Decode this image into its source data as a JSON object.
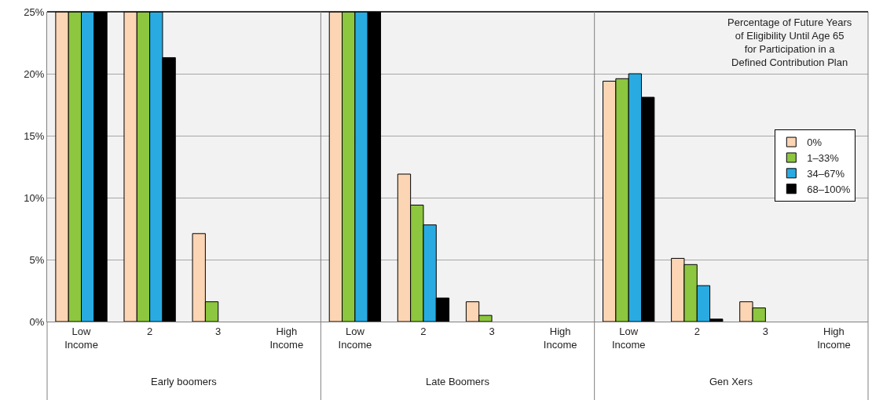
{
  "chart_data": {
    "type": "bar",
    "categories": [
      "Low Income",
      "2",
      "3",
      "High Income",
      "Low Income",
      "2",
      "3",
      "High Income",
      "Low Income",
      "2",
      "3",
      "High Income"
    ],
    "series": [
      {
        "name": "0%",
        "color": "#fcd5b4",
        "values": [
          25,
          25,
          7.1,
          0,
          25,
          11.9,
          1.6,
          0,
          19.4,
          5.1,
          1.6,
          0
        ]
      },
      {
        "name": "1–33%",
        "color": "#8dc63f",
        "values": [
          25,
          25,
          1.6,
          0,
          25,
          9.4,
          0.5,
          0,
          19.6,
          4.6,
          1.1,
          0
        ]
      },
      {
        "name": "34–67%",
        "color": "#29abe2",
        "values": [
          25,
          25,
          0,
          0,
          25,
          7.8,
          0,
          0,
          20.0,
          2.9,
          0,
          0
        ]
      },
      {
        "name": "68–100%",
        "color": "#000000",
        "values": [
          25,
          21.3,
          0,
          0,
          25,
          1.9,
          0,
          0,
          18.1,
          0.2,
          0,
          0
        ]
      }
    ],
    "ylim": [
      0,
      25
    ],
    "yticks": [
      {
        "value": 0,
        "label": "0%"
      },
      {
        "value": 5,
        "label": "5%"
      },
      {
        "value": 10,
        "label": "10%"
      },
      {
        "value": 15,
        "label": "15%"
      },
      {
        "value": 20,
        "label": "20%"
      },
      {
        "value": 25,
        "label": "25%"
      }
    ],
    "grid": "y",
    "legend": "top right",
    "legend_title": "Percentage of Future Years of Eligibility Until Age 65 for Participation in a Defined Contribution Plan",
    "annotations": [
      "Early boomers",
      "Late Boomers",
      "Gen Xers"
    ]
  }
}
